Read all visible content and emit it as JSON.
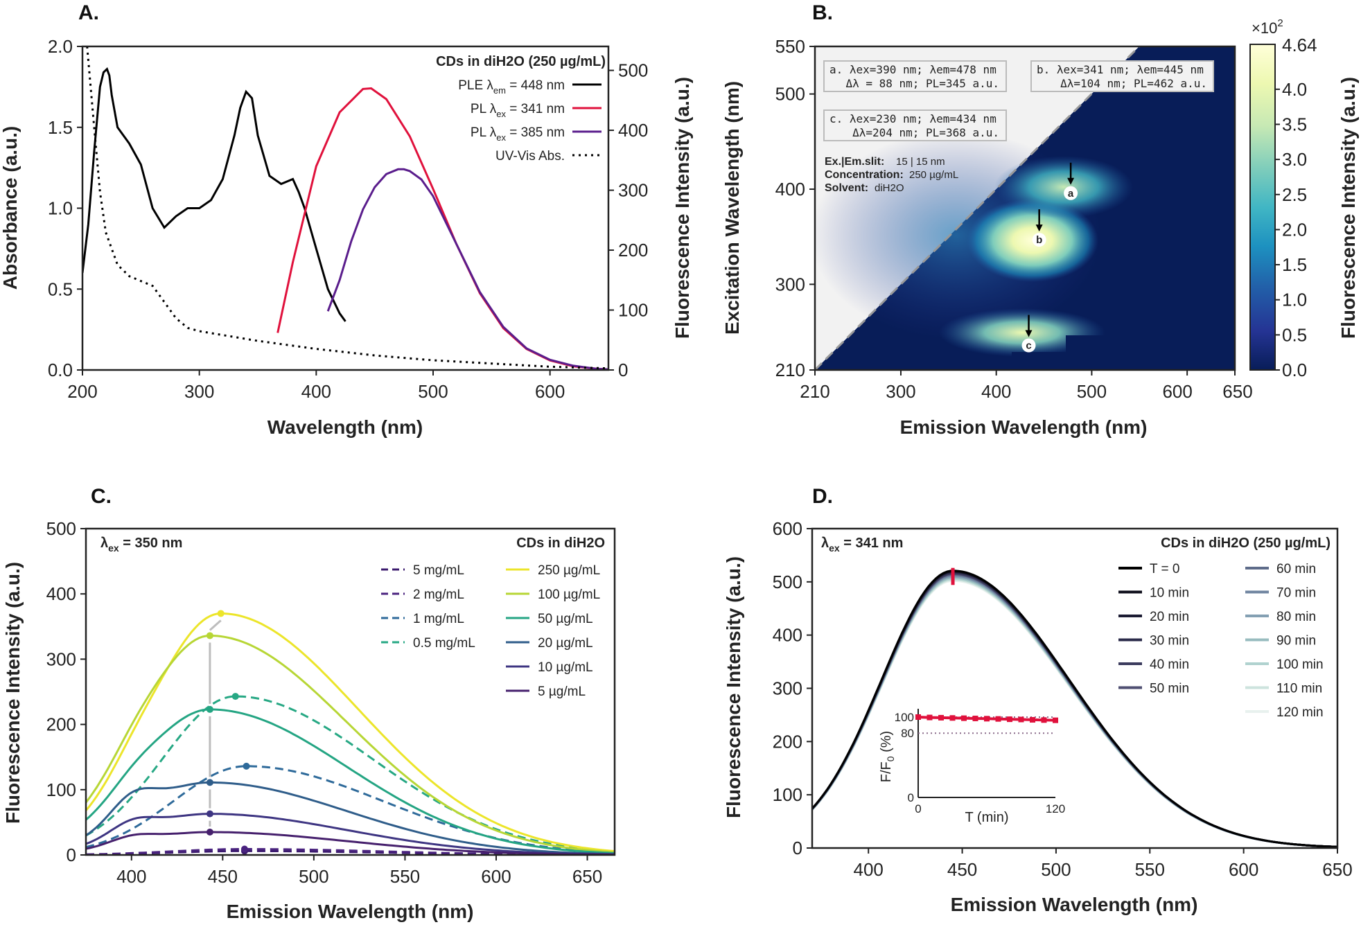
{
  "panels": {
    "A": {
      "label": "A.",
      "chart_data": {
        "type": "line",
        "xlabel": "Wavelength (nm)",
        "ylabel_left": "Absorbance (a.u.)",
        "ylabel_right": "Fluorescence Intensity (a.u.)",
        "xlim": [
          200,
          650
        ],
        "ylim_left": [
          0,
          2.0
        ],
        "ylim_right": [
          0,
          540
        ],
        "xticks": [
          200,
          300,
          400,
          500,
          600
        ],
        "yticks_left": [
          0.0,
          0.5,
          1.0,
          1.5,
          2.0
        ],
        "yticks_right": [
          0,
          100,
          200,
          300,
          400,
          500
        ],
        "yticks_left_labels": [
          "0.0",
          "0.5",
          "1.0",
          "1.5",
          "2.0"
        ],
        "yticks_right_labels": [
          "0",
          "100",
          "200",
          "300",
          "400",
          "500"
        ],
        "legend_title": "CDs in diH2O (250 µg/mL)",
        "legend_position": "top-right",
        "series": [
          {
            "name": "PLE λem = 448 nm",
            "legend": [
              "PLE λ",
              "em",
              " = 448 nm"
            ],
            "axis": "left",
            "color": "#000000",
            "style": "solid",
            "x": [
              200,
              205,
              210,
              215,
              218,
              221,
              223,
              225,
              230,
              240,
              250,
              260,
              270,
              280,
              290,
              300,
              310,
              320,
              330,
              335,
              340,
              345,
              350,
              360,
              370,
              380,
              385,
              390,
              400,
              410,
              420,
              425
            ],
            "y": [
              0.6,
              0.9,
              1.35,
              1.75,
              1.84,
              1.86,
              1.82,
              1.7,
              1.5,
              1.4,
              1.27,
              1.0,
              0.88,
              0.95,
              1.0,
              1.0,
              1.05,
              1.18,
              1.45,
              1.62,
              1.72,
              1.68,
              1.45,
              1.2,
              1.15,
              1.18,
              1.1,
              1.0,
              0.75,
              0.5,
              0.35,
              0.3
            ]
          },
          {
            "name": "PL λex = 341 nm",
            "legend": [
              "PL λ",
              "ex",
              " = 341 nm"
            ],
            "axis": "right",
            "color": "#e0113c",
            "style": "solid",
            "x": [
              367,
              380,
              400,
              420,
              440,
              447,
              460,
              480,
              500,
              520,
              540,
              560,
              580,
              600,
              620,
              640,
              650
            ],
            "y": [
              62,
              180,
              340,
              430,
              469,
              470,
              452,
              390,
              302,
              210,
              128,
              70,
              35,
              16,
              6,
              2,
              1
            ]
          },
          {
            "name": "PL λex = 385 nm",
            "legend": [
              "PL λ",
              "ex",
              " = 385 nm"
            ],
            "axis": "right",
            "color": "#5a1d8c",
            "style": "solid",
            "x": [
              410,
              420,
              430,
              440,
              450,
              460,
              470,
              475,
              480,
              490,
              500,
              520,
              540,
              560,
              580,
              600,
              620,
              640,
              650
            ],
            "y": [
              98,
              150,
              215,
              268,
              305,
              327,
              335,
              335,
              332,
              318,
              290,
              210,
              130,
              72,
              36,
              17,
              7,
              2,
              1
            ]
          },
          {
            "name": "UV-Vis Abs.",
            "legend": [
              "UV-Vis Abs."
            ],
            "axis": "left",
            "color": "#000000",
            "style": "dotted",
            "x": [
              204,
              210,
              215,
              220,
              230,
              240,
              250,
              260,
              270,
              280,
              290,
              300,
              350,
              400,
              450,
              500,
              550,
              600,
              650
            ],
            "y": [
              2.0,
              1.5,
              1.1,
              0.85,
              0.65,
              0.58,
              0.55,
              0.52,
              0.42,
              0.32,
              0.26,
              0.24,
              0.18,
              0.13,
              0.09,
              0.06,
              0.04,
              0.02,
              0.01
            ]
          }
        ]
      }
    },
    "B": {
      "label": "B.",
      "chart_data": {
        "type": "heatmap",
        "xlabel": "Emission Wavelength (nm)",
        "ylabel": "Excitation Wavelength (nm)",
        "colorbar_label": "Fluorescence Intensity (a.u.)",
        "colorbar_multiplier": [
          "×10",
          "2"
        ],
        "colorbar_max_label": "4.64",
        "colorbar_range": [
          0,
          4.64
        ],
        "colorbar_ticks": [
          0.0,
          0.5,
          1.0,
          1.5,
          2.0,
          2.5,
          3.0,
          3.5,
          4.0
        ],
        "colorbar_tick_labels": [
          "0.0",
          "0.5",
          "1.0",
          "1.5",
          "2.0",
          "2.5",
          "3.0",
          "3.5",
          "4.0"
        ],
        "xlim": [
          210,
          650
        ],
        "ylim": [
          210,
          550
        ],
        "xticks": [
          210,
          300,
          400,
          500,
          600,
          650
        ],
        "yticks": [
          210,
          300,
          400,
          500,
          550
        ],
        "colormap": "YlGnBu_r",
        "peaks": [
          {
            "id": "a",
            "ex": 390,
            "em": 478,
            "dl": 88,
            "pl": 345
          },
          {
            "id": "b",
            "ex": 341,
            "em": 445,
            "dl": 104,
            "pl": 462
          },
          {
            "id": "c",
            "ex": 230,
            "em": 434,
            "dl": 204,
            "pl": 368
          }
        ],
        "annotations": {
          "a": "a. λex=390 nm; λem=478 nm",
          "a2": "Δλ = 88 nm; PL=345 a.u.",
          "b": "b. λex=341 nm; λem=445 nm",
          "b2": "Δλ=104 nm; PL=462 a.u.",
          "c": "c. λex=230 nm; λem=434 nm",
          "c2": "Δλ=204 nm; PL=368 a.u."
        },
        "info": {
          "slit_label": "Ex.|Em.slit:",
          "slit_value": "15 | 15 nm",
          "conc_label": "Concentration:",
          "conc_value": "250 µg/mL",
          "solvent_label": "Solvent:",
          "solvent_value": "diH2O"
        }
      }
    },
    "C": {
      "label": "C.",
      "chart_data": {
        "type": "line",
        "xlabel": "Emission Wavelength (nm)",
        "ylabel": "Fluorescence Intensity (a.u.)",
        "xlim": [
          375,
          665
        ],
        "ylim": [
          0,
          500
        ],
        "xticks": [
          400,
          450,
          500,
          550,
          600,
          650
        ],
        "yticks": [
          0,
          100,
          200,
          300,
          400,
          500
        ],
        "excitation_label": [
          "λ",
          "ex",
          " = 350 nm"
        ],
        "legend_title": "CDs in diH2O",
        "legend_position": "top-right",
        "series": [
          {
            "name": "5 mg/mL",
            "color": "#3b1a6e",
            "style": "dashed",
            "peak_x": 462,
            "peak_y": 6
          },
          {
            "name": "2 mg/mL",
            "color": "#4a237f",
            "style": "dashed",
            "peak_x": 462,
            "peak_y": 9
          },
          {
            "name": "1 mg/mL",
            "color": "#2e6a9a",
            "style": "dashed",
            "peak_x": 463,
            "peak_y": 136
          },
          {
            "name": "0.5 mg/mL",
            "color": "#27a884",
            "style": "dashed",
            "peak_x": 457,
            "peak_y": 243
          },
          {
            "name": "250 µg/mL",
            "color": "#ece52a",
            "style": "solid",
            "peak_x": 449,
            "peak_y": 370
          },
          {
            "name": "100 µg/mL",
            "color": "#b7d635",
            "style": "solid",
            "peak_x": 443,
            "peak_y": 336
          },
          {
            "name": "50 µg/mL",
            "color": "#24a583",
            "style": "solid",
            "peak_x": 443,
            "peak_y": 223
          },
          {
            "name": "20 µg/mL",
            "color": "#2f5d8a",
            "style": "solid",
            "peak_x": 443,
            "peak_y": 111
          },
          {
            "name": "10 µg/mL",
            "color": "#3e3582",
            "style": "solid",
            "peak_x": 443,
            "peak_y": 63
          },
          {
            "name": "5 µg/mL",
            "color": "#46206d",
            "style": "solid",
            "peak_x": 443,
            "peak_y": 35
          }
        ]
      }
    },
    "D": {
      "label": "D.",
      "chart_data": {
        "type": "line",
        "xlabel": "Emission Wavelength (nm)",
        "ylabel": "Fluorescence Intensity (a.u.)",
        "xlim": [
          370,
          650
        ],
        "ylim": [
          0,
          600
        ],
        "xticks": [
          400,
          450,
          500,
          550,
          600,
          650
        ],
        "yticks": [
          0,
          100,
          200,
          300,
          400,
          500,
          600
        ],
        "excitation_label": [
          "λ",
          "ex",
          " = 341 nm"
        ],
        "legend_title": "CDs in diH2O (250 µg/mL)",
        "legend_position": "top-right",
        "series": [
          {
            "name": "T = 0",
            "color": "#000000",
            "peak": 521
          },
          {
            "name": "10 min",
            "color": "#0d0d1a",
            "peak": 520
          },
          {
            "name": "20 min",
            "color": "#1c1c33",
            "peak": 519
          },
          {
            "name": "30 min",
            "color": "#2b2b4a",
            "peak": 518
          },
          {
            "name": "40 min",
            "color": "#3c3c5e",
            "peak": 516
          },
          {
            "name": "50 min",
            "color": "#4f4f72",
            "peak": 515
          },
          {
            "name": "60 min",
            "color": "#5e6c8a",
            "peak": 514
          },
          {
            "name": "70 min",
            "color": "#6f84a0",
            "peak": 512
          },
          {
            "name": "80 min",
            "color": "#84a0b3",
            "peak": 510
          },
          {
            "name": "90 min",
            "color": "#98bcbf",
            "peak": 508
          },
          {
            "name": "100 min",
            "color": "#b0d2cf",
            "peak": 506
          },
          {
            "name": "110 min",
            "color": "#cde3de",
            "peak": 504
          },
          {
            "name": "120 min",
            "color": "#e8f1ee",
            "peak": 502
          }
        ],
        "inset": {
          "xlabel": "T (min)",
          "ylabel": [
            "F/F",
            "0",
            " (%)"
          ],
          "xlim": [
            0,
            120
          ],
          "ylim": [
            0,
            100
          ],
          "xticks": [
            0,
            120
          ],
          "yticks": [
            0,
            80,
            100
          ],
          "reference_lines": [
            80,
            100
          ],
          "series": {
            "color": "#e0113c",
            "x": [
              0,
              10,
              20,
              30,
              40,
              50,
              60,
              70,
              80,
              90,
              100,
              110,
              120
            ],
            "y": [
              100,
              99.5,
              99.2,
              98.9,
              98.6,
              98.3,
              98.0,
              97.7,
              97.3,
              97.0,
              96.6,
              96.3,
              96.0
            ]
          }
        }
      }
    }
  }
}
